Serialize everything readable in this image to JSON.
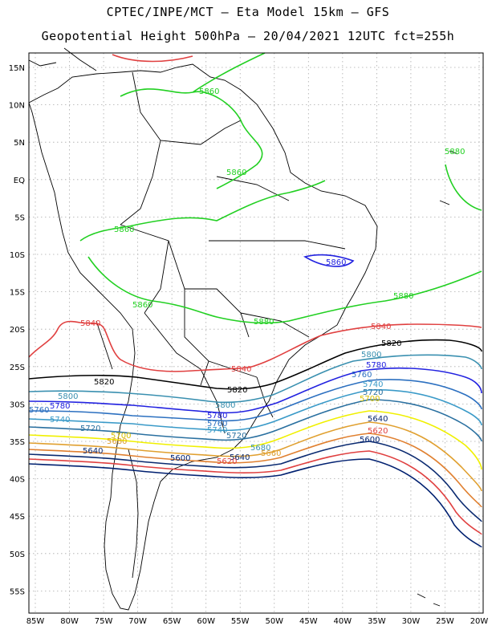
{
  "header": {
    "line1": "CPTEC/INPE/MCT –  Eta Model 15km – GFS",
    "line2": "Geopotential Height 500hPa – 20/04/2021 12UTC fct=255h"
  },
  "axes": {
    "lat_labels": [
      "15N",
      "10N",
      "5N",
      "EQ",
      "5S",
      "10S",
      "15S",
      "20S",
      "25S",
      "30S",
      "35S",
      "40S",
      "45S",
      "50S",
      "55S"
    ],
    "lon_labels": [
      "85W",
      "80W",
      "75W",
      "70W",
      "65W",
      "60W",
      "55W",
      "50W",
      "45W",
      "40W",
      "35W",
      "30W",
      "25W",
      "20W"
    ]
  },
  "contours": [
    {
      "level": "5880",
      "color": "#22b022"
    },
    {
      "level": "5860",
      "color": "#22d022"
    },
    {
      "level": "5840",
      "color": "#e04040"
    },
    {
      "level": "5820",
      "color": "#000000"
    },
    {
      "level": "5800",
      "color": "#3a90b0"
    },
    {
      "level": "5780",
      "color": "#2222e0"
    },
    {
      "level": "5760",
      "color": "#2c70c0"
    },
    {
      "level": "5740",
      "color": "#3a9ac8"
    },
    {
      "level": "5720",
      "color": "#2a70a0"
    },
    {
      "level": "5700",
      "color": "#f0f000"
    },
    {
      "level": "5680",
      "color": "#e0a030"
    },
    {
      "level": "5660",
      "color": "#e08030"
    },
    {
      "level": "5640",
      "color": "#0a2a70"
    },
    {
      "level": "5620",
      "color": "#e04040"
    },
    {
      "level": "5600",
      "color": "#002070"
    }
  ],
  "labels": {
    "g5880_a": "5880",
    "g5880_b": "5880",
    "g5880_c": "5880",
    "g5860_a": "5860",
    "g5860_b": "5860",
    "g5860_c": "5860",
    "g5860_d": "5860",
    "b5860": "5860",
    "r5840_a": "5840",
    "r5840_b": "5840",
    "r5840_c": "5840",
    "k5820_a": "5820",
    "k5820_b": "5820",
    "k5820_c": "5820",
    "c5800_a": "5800",
    "c5800_b": "5800",
    "c5800_c": "5800",
    "b5780_a": "5780",
    "b5780_b": "5780",
    "b5780_c": "5780",
    "c5760_a": "5760",
    "c5760_b": "5760",
    "c5760_c": "5760",
    "c5740_a": "5740",
    "c5740_b": "5740",
    "c5740_c": "5740",
    "c5720_a": "5720",
    "c5720_b": "5720",
    "c5720_c": "5720",
    "y5700_a": "5700",
    "y5700_b": "5700",
    "o5680_a": "5680",
    "o5680_b": "5680",
    "o5660_a": "5660",
    "n5640_a": "5640",
    "n5640_b": "5640",
    "n5640_c": "5640",
    "r5620_a": "5620",
    "r5620_b": "5620",
    "n5600_a": "5600",
    "n5600_b": "5600"
  }
}
